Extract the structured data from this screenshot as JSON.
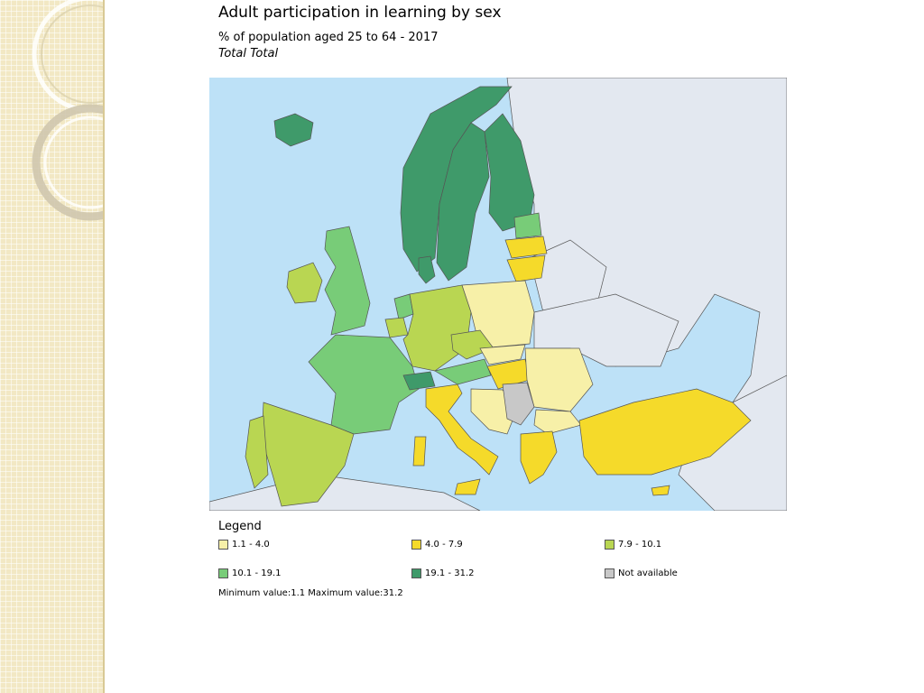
{
  "header": {
    "title": "Adult participation in learning by sex",
    "subtitle": "% of population aged 25 to 64 - 2017",
    "filter": "Total Total"
  },
  "colors": {
    "sea": "#bde1f7",
    "non_data_land": "#e3e8f0",
    "class_1": "#f7f0a8",
    "class_2": "#f5da2a",
    "class_3": "#b9d652",
    "class_4": "#78cc78",
    "class_5": "#3f9a6a",
    "not_available": "#c8c8c8",
    "border": "#555555"
  },
  "legend": {
    "title": "Legend",
    "items": [
      {
        "label": "1.1 - 4.0",
        "color": "#f7f0a8"
      },
      {
        "label": "4.0 - 7.9",
        "color": "#f5da2a"
      },
      {
        "label": "7.9 - 10.1",
        "color": "#b9d652"
      },
      {
        "label": "10.1 - 19.1",
        "color": "#78cc78"
      },
      {
        "label": "19.1 - 31.2",
        "color": "#3f9a6a"
      },
      {
        "label": "Not available",
        "color": "#c8c8c8"
      }
    ],
    "minmax": "Minimum value:1.1 Maximum value:31.2"
  }
}
